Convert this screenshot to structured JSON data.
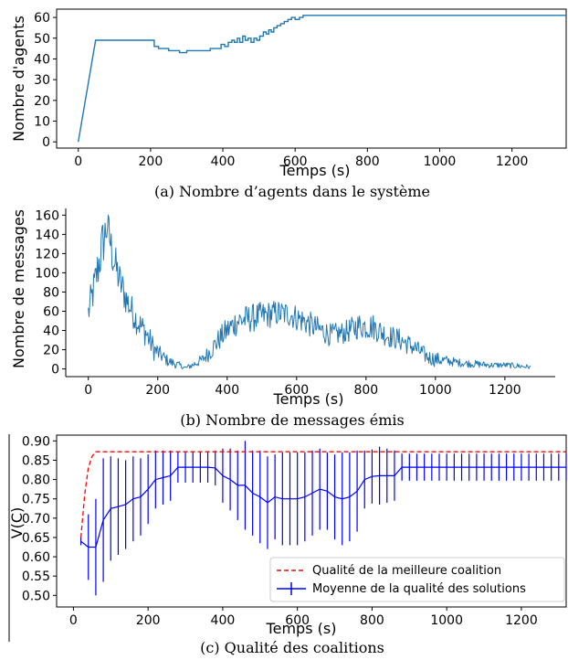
{
  "chart_data": [
    {
      "type": "line",
      "caption": "(a) Nombre d’agents dans le système",
      "xlabel": "Temps (s)",
      "ylabel": "Nombre d'agents",
      "xlim": [
        -60,
        1350
      ],
      "ylim": [
        -3,
        64
      ],
      "xticks": [
        0,
        200,
        400,
        600,
        800,
        1000,
        1200
      ],
      "yticks": [
        0,
        10,
        20,
        30,
        40,
        50,
        60
      ],
      "grid": false,
      "color": "#1f77b4",
      "series": [
        {
          "x": [
            0,
            48,
            48,
            210,
            210,
            222,
            222,
            250,
            250,
            280,
            280,
            300,
            300,
            345,
            345,
            365,
            365,
            380,
            380,
            395,
            395,
            405,
            405,
            415,
            415,
            425,
            425,
            432,
            432,
            440,
            440,
            447,
            447,
            455,
            455,
            462,
            462,
            470,
            470,
            478,
            478,
            486,
            486,
            494,
            494,
            502,
            502,
            512,
            512,
            520,
            520,
            527,
            527,
            534,
            534,
            541,
            541,
            550,
            550,
            560,
            560,
            570,
            570,
            580,
            580,
            590,
            590,
            600,
            600,
            612,
            612,
            622,
            622,
            1350
          ],
          "y": [
            0,
            49,
            49,
            49,
            46,
            46,
            45,
            45,
            44,
            44,
            43,
            43,
            44,
            44,
            44,
            44,
            45,
            45,
            45,
            45,
            47,
            47,
            46,
            46,
            48,
            48,
            49,
            49,
            48,
            48,
            50,
            50,
            48,
            48,
            51,
            51,
            49,
            49,
            50,
            50,
            48,
            48,
            50,
            50,
            49,
            49,
            51,
            51,
            53,
            53,
            52,
            52,
            54,
            54,
            53,
            53,
            55,
            55,
            56,
            56,
            57,
            57,
            58,
            58,
            59,
            59,
            60,
            60,
            59,
            59,
            60,
            60,
            61,
            61
          ]
        }
      ]
    },
    {
      "type": "line",
      "caption": "(b) Nombre de messages émis",
      "xlabel": "Temps (s)",
      "ylabel": "Nombre de messages",
      "xlim": [
        -65,
        1345
      ],
      "ylim": [
        -8,
        167
      ],
      "xticks": [
        0,
        200,
        400,
        600,
        800,
        1000,
        1200
      ],
      "yticks": [
        0,
        20,
        40,
        60,
        80,
        100,
        120,
        140,
        160
      ],
      "grid": false,
      "color": "#1f77b4",
      "series": [
        {
          "envelope": [
            [
              0,
              58,
              18
            ],
            [
              20,
              90,
              22
            ],
            [
              40,
              128,
              28
            ],
            [
              55,
              150,
              22
            ],
            [
              70,
              118,
              22
            ],
            [
              90,
              92,
              20
            ],
            [
              110,
              72,
              18
            ],
            [
              140,
              50,
              15
            ],
            [
              165,
              38,
              15
            ],
            [
              190,
              20,
              12
            ],
            [
              210,
              14,
              8
            ],
            [
              230,
              8,
              6
            ],
            [
              260,
              4,
              4
            ],
            [
              280,
              1,
              2
            ],
            [
              300,
              4,
              4
            ],
            [
              330,
              10,
              6
            ],
            [
              350,
              18,
              10
            ],
            [
              375,
              30,
              12
            ],
            [
              400,
              40,
              14
            ],
            [
              430,
              50,
              15
            ],
            [
              460,
              52,
              15
            ],
            [
              500,
              55,
              15
            ],
            [
              540,
              58,
              14
            ],
            [
              580,
              57,
              14
            ],
            [
              620,
              50,
              14
            ],
            [
              660,
              42,
              13
            ],
            [
              700,
              35,
              12
            ],
            [
              740,
              38,
              12
            ],
            [
              780,
              45,
              14
            ],
            [
              820,
              44,
              14
            ],
            [
              860,
              35,
              12
            ],
            [
              900,
              30,
              12
            ],
            [
              940,
              22,
              10
            ],
            [
              980,
              12,
              8
            ],
            [
              1000,
              10,
              8
            ],
            [
              1040,
              8,
              5
            ],
            [
              1080,
              6,
              4
            ],
            [
              1120,
              5,
              4
            ],
            [
              1160,
              4,
              3
            ],
            [
              1200,
              4,
              3
            ],
            [
              1240,
              3,
              3
            ],
            [
              1275,
              2,
              2
            ]
          ]
        }
      ]
    },
    {
      "type": "line",
      "caption": "(c) Qualité des coalitions",
      "xlabel": "Temps (s)",
      "ylabel": "V(C)",
      "xlim": [
        -45,
        1320
      ],
      "ylim": [
        0.47,
        0.915
      ],
      "xticks": [
        0,
        200,
        400,
        600,
        800,
        1000,
        1200
      ],
      "yticks": [
        0.5,
        0.55,
        0.6,
        0.65,
        0.7,
        0.75,
        0.8,
        0.85,
        0.9
      ],
      "grid": false,
      "legend": "lower-right",
      "series": [
        {
          "name": "Qualité de la meilleure coalition",
          "color": "#ff0000",
          "style": "dashed",
          "x": [
            20,
            30,
            40,
            50,
            60,
            1320
          ],
          "y": [
            0.65,
            0.76,
            0.83,
            0.86,
            0.872,
            0.872
          ]
        },
        {
          "name": "Moyenne de la qualité des solutions",
          "color": "#0000ff",
          "style": "errorbar",
          "x": [
            20,
            40,
            60,
            80,
            100,
            120,
            140,
            160,
            180,
            200,
            220,
            240,
            260,
            280,
            300,
            320,
            340,
            360,
            380,
            400,
            420,
            440,
            460,
            480,
            500,
            520,
            540,
            560,
            580,
            600,
            620,
            640,
            660,
            680,
            700,
            720,
            740,
            760,
            780,
            800,
            820,
            840,
            860,
            880,
            900,
            920,
            940,
            960,
            980,
            1000,
            1020,
            1040,
            1060,
            1080,
            1100,
            1120,
            1140,
            1160,
            1180,
            1200,
            1220,
            1240,
            1260,
            1280,
            1300,
            1320
          ],
          "y": [
            0.64,
            0.625,
            0.625,
            0.695,
            0.725,
            0.73,
            0.735,
            0.75,
            0.755,
            0.775,
            0.8,
            0.805,
            0.81,
            0.832,
            0.832,
            0.832,
            0.832,
            0.832,
            0.83,
            0.81,
            0.8,
            0.785,
            0.785,
            0.765,
            0.755,
            0.74,
            0.755,
            0.75,
            0.75,
            0.75,
            0.755,
            0.765,
            0.775,
            0.77,
            0.755,
            0.75,
            0.755,
            0.77,
            0.8,
            0.808,
            0.81,
            0.81,
            0.81,
            0.832,
            0.832,
            0.832,
            0.832,
            0.832,
            0.832,
            0.832,
            0.832,
            0.832,
            0.832,
            0.832,
            0.832,
            0.832,
            0.832,
            0.832,
            0.832,
            0.832,
            0.832,
            0.832,
            0.832,
            0.832,
            0.832,
            0.832
          ],
          "err": [
            0.01,
            0.085,
            0.125,
            0.16,
            0.135,
            0.125,
            0.115,
            0.11,
            0.1,
            0.09,
            0.075,
            0.07,
            0.065,
            0.04,
            0.04,
            0.04,
            0.04,
            0.04,
            0.045,
            0.07,
            0.08,
            0.09,
            0.115,
            0.11,
            0.12,
            0.12,
            0.11,
            0.12,
            0.12,
            0.12,
            0.115,
            0.11,
            0.105,
            0.1,
            0.11,
            0.12,
            0.115,
            0.105,
            0.075,
            0.07,
            0.075,
            0.07,
            0.065,
            0.035,
            0.035,
            0.035,
            0.035,
            0.035,
            0.035,
            0.035,
            0.035,
            0.035,
            0.035,
            0.035,
            0.035,
            0.035,
            0.035,
            0.035,
            0.035,
            0.035,
            0.035,
            0.035,
            0.035,
            0.035,
            0.035,
            0.035
          ]
        }
      ]
    }
  ]
}
